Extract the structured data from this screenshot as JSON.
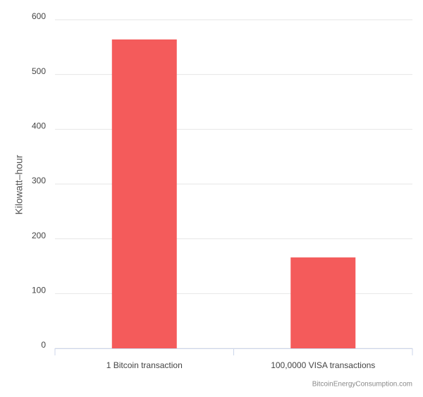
{
  "chart_data": {
    "type": "bar",
    "y_label": "Kilowatt–hour",
    "categories": [
      "1 Bitcoin transaction",
      "100,0000 VISA transactions"
    ],
    "values": [
      564,
      166
    ],
    "color": "#f45b5b",
    "ylim": [
      0,
      600
    ],
    "yticks": [
      0,
      100,
      200,
      300,
      400,
      500,
      600
    ],
    "grid": true,
    "credit": "BitcoinEnergyConsumption.com"
  }
}
